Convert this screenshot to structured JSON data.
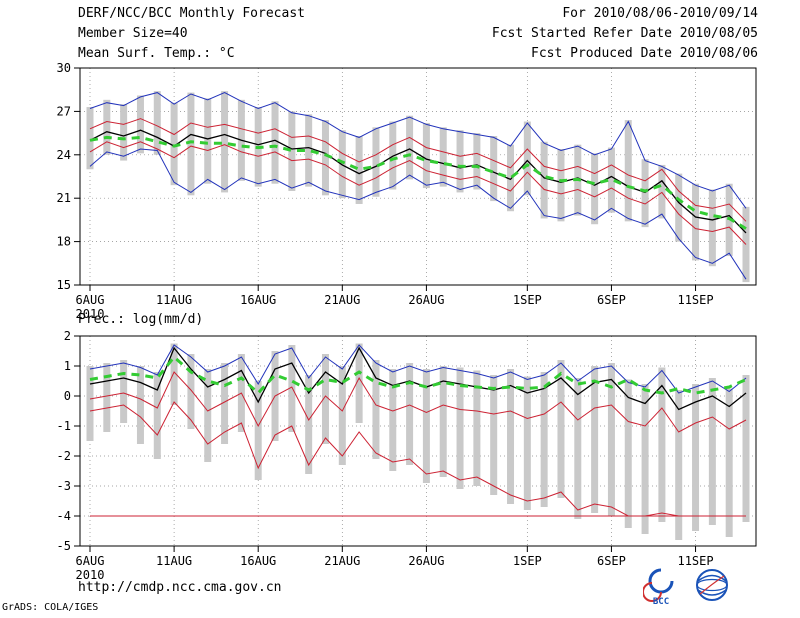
{
  "header": {
    "title": "DERF/NCC/BCC Monthly Forecast",
    "member_size": "Member Size=40",
    "for_range": "For 2010/08/06-2010/09/14",
    "refer_date": "Fcst Started Refer Date 2010/08/05",
    "produced_date": "Fcst Produced Date 2010/08/06"
  },
  "footer": {
    "url": "http://cmdp.ncc.cma.gov.cn",
    "credit": "GrADS: COLA/IGES",
    "bcc_logo_label": "BCC"
  },
  "colors": {
    "blue": "#2233bb",
    "red": "#cc2233",
    "green": "#33cc33",
    "black": "#000000",
    "bar": "#c9c9c9",
    "grid": "#888888"
  },
  "chart_data": [
    {
      "type": "line",
      "title": "Mean Surf. Temp.: °C",
      "xlabel": "",
      "ylabel": "°C",
      "ylim": [
        15,
        30
      ],
      "yticks": [
        15,
        18,
        21,
        24,
        27,
        30
      ],
      "x": [
        "6AUG",
        "7AUG",
        "8AUG",
        "9AUG",
        "10AUG",
        "11AUG",
        "12AUG",
        "13AUG",
        "14AUG",
        "15AUG",
        "16AUG",
        "17AUG",
        "18AUG",
        "19AUG",
        "20AUG",
        "21AUG",
        "22AUG",
        "23AUG",
        "24AUG",
        "25AUG",
        "26AUG",
        "27AUG",
        "28AUG",
        "29AUG",
        "30AUG",
        "31AUG",
        "1SEP",
        "2SEP",
        "3SEP",
        "4SEP",
        "5SEP",
        "6SEP",
        "7SEP",
        "8SEP",
        "9SEP",
        "10SEP",
        "11SEP",
        "12SEP",
        "13SEP",
        "14SEP"
      ],
      "xticks": [
        {
          "index": 0,
          "label": "6AUG",
          "sub": "2010"
        },
        {
          "index": 5,
          "label": "11AUG"
        },
        {
          "index": 10,
          "label": "16AUG"
        },
        {
          "index": 15,
          "label": "21AUG"
        },
        {
          "index": 20,
          "label": "26AUG"
        },
        {
          "index": 26,
          "label": "1SEP"
        },
        {
          "index": 31,
          "label": "6SEP"
        },
        {
          "index": 36,
          "label": "11SEP"
        }
      ],
      "bars": {
        "low": [
          23.0,
          24.0,
          23.6,
          24.1,
          24.0,
          21.9,
          21.2,
          22.0,
          21.4,
          22.2,
          21.8,
          22.0,
          21.5,
          21.8,
          21.2,
          21.0,
          20.6,
          21.1,
          21.6,
          22.3,
          21.7,
          21.8,
          21.4,
          21.6,
          20.8,
          20.1,
          21.2,
          19.6,
          19.4,
          19.8,
          19.2,
          20.0,
          19.4,
          19.0,
          19.6,
          18.0,
          16.7,
          16.3,
          17.0,
          15.2
        ],
        "high": [
          27.3,
          27.8,
          27.5,
          28.1,
          28.4,
          27.6,
          28.3,
          27.9,
          28.4,
          27.8,
          27.3,
          27.7,
          27.0,
          26.8,
          26.4,
          25.7,
          25.3,
          25.9,
          26.3,
          26.7,
          26.2,
          25.9,
          25.7,
          25.5,
          25.3,
          24.7,
          26.3,
          24.9,
          24.4,
          24.7,
          24.1,
          24.5,
          26.4,
          23.7,
          23.3,
          22.7,
          22.0,
          21.6,
          22.0,
          20.4
        ]
      },
      "series": [
        {
          "name": "upper-bound-blue",
          "color": "#2233bb",
          "width": 1,
          "dash": false,
          "values": [
            27.2,
            27.6,
            27.4,
            28.0,
            28.3,
            27.5,
            28.2,
            27.8,
            28.3,
            27.7,
            27.2,
            27.6,
            26.9,
            26.7,
            26.3,
            25.6,
            25.2,
            25.8,
            26.2,
            26.6,
            26.1,
            25.8,
            25.6,
            25.4,
            25.2,
            24.6,
            26.2,
            24.8,
            24.3,
            24.6,
            24.0,
            24.4,
            26.3,
            23.6,
            23.2,
            22.6,
            21.9,
            21.5,
            21.9,
            20.3
          ]
        },
        {
          "name": "lower-bound-blue",
          "color": "#2233bb",
          "width": 1,
          "dash": false,
          "values": [
            23.2,
            24.2,
            23.9,
            24.4,
            24.3,
            22.1,
            21.4,
            22.3,
            21.6,
            22.4,
            22.0,
            22.3,
            21.7,
            22.1,
            21.5,
            21.2,
            20.9,
            21.4,
            21.8,
            22.6,
            21.9,
            22.1,
            21.6,
            21.9,
            21.0,
            20.3,
            21.5,
            19.8,
            19.6,
            20.0,
            19.5,
            20.3,
            19.6,
            19.2,
            19.9,
            18.2,
            16.9,
            16.5,
            17.2,
            15.4
          ]
        },
        {
          "name": "upper-red",
          "color": "#cc2233",
          "width": 1,
          "dash": false,
          "values": [
            25.8,
            26.3,
            26.1,
            26.5,
            26.0,
            25.4,
            26.2,
            25.9,
            26.1,
            25.8,
            25.5,
            25.8,
            25.2,
            25.3,
            24.9,
            24.1,
            23.5,
            24.0,
            24.7,
            25.2,
            24.5,
            24.2,
            23.9,
            24.1,
            23.6,
            23.1,
            24.4,
            23.2,
            22.9,
            23.2,
            22.7,
            23.3,
            22.6,
            22.2,
            23.0,
            21.5,
            20.5,
            20.3,
            20.6,
            19.4
          ]
        },
        {
          "name": "lower-red",
          "color": "#cc2233",
          "width": 1,
          "dash": false,
          "values": [
            24.2,
            24.9,
            24.5,
            24.9,
            24.4,
            23.8,
            24.6,
            24.3,
            24.7,
            24.2,
            23.9,
            24.2,
            23.6,
            23.7,
            23.3,
            22.5,
            21.9,
            22.4,
            23.1,
            23.6,
            22.9,
            22.6,
            22.3,
            22.5,
            22.0,
            21.5,
            22.8,
            21.6,
            21.3,
            21.6,
            21.1,
            21.7,
            21.0,
            20.6,
            21.4,
            19.9,
            18.9,
            18.7,
            19.0,
            17.8
          ]
        },
        {
          "name": "ensemble-mean-black",
          "color": "#000000",
          "width": 1.3,
          "dash": false,
          "values": [
            25.0,
            25.6,
            25.3,
            25.7,
            25.2,
            24.6,
            25.4,
            25.1,
            25.4,
            25.0,
            24.7,
            25.0,
            24.4,
            24.5,
            24.1,
            23.3,
            22.7,
            23.2,
            23.9,
            24.4,
            23.7,
            23.4,
            23.1,
            23.3,
            22.8,
            22.3,
            23.6,
            22.4,
            22.1,
            22.4,
            21.9,
            22.5,
            21.8,
            21.4,
            22.2,
            20.7,
            19.7,
            19.5,
            19.8,
            18.6
          ]
        },
        {
          "name": "dashed-green",
          "color": "#33cc33",
          "width": 3,
          "dash": true,
          "values": [
            25.0,
            25.2,
            25.1,
            25.2,
            24.9,
            24.6,
            24.9,
            24.8,
            24.8,
            24.6,
            24.5,
            24.6,
            24.3,
            24.3,
            24.0,
            23.5,
            23.0,
            23.2,
            23.7,
            24.0,
            23.6,
            23.4,
            23.2,
            23.2,
            22.8,
            22.4,
            23.3,
            22.5,
            22.2,
            22.3,
            22.0,
            22.3,
            21.8,
            21.5,
            21.9,
            20.9,
            20.1,
            19.8,
            19.6,
            18.9
          ]
        }
      ]
    },
    {
      "type": "line",
      "title": "Prec.: log(mm/d)",
      "xlabel": "",
      "ylabel": "log(mm/d)",
      "ylim": [
        -5,
        2
      ],
      "yticks": [
        -5,
        -4,
        -3,
        -2,
        -1,
        0,
        1,
        2
      ],
      "x": [
        "6AUG",
        "7AUG",
        "8AUG",
        "9AUG",
        "10AUG",
        "11AUG",
        "12AUG",
        "13AUG",
        "14AUG",
        "15AUG",
        "16AUG",
        "17AUG",
        "18AUG",
        "19AUG",
        "20AUG",
        "21AUG",
        "22AUG",
        "23AUG",
        "24AUG",
        "25AUG",
        "26AUG",
        "27AUG",
        "28AUG",
        "29AUG",
        "30AUG",
        "31AUG",
        "1SEP",
        "2SEP",
        "3SEP",
        "4SEP",
        "5SEP",
        "6SEP",
        "7SEP",
        "8SEP",
        "9SEP",
        "10SEP",
        "11SEP",
        "12SEP",
        "13SEP",
        "14SEP"
      ],
      "xticks": [
        {
          "index": 0,
          "label": "6AUG",
          "sub": "2010"
        },
        {
          "index": 5,
          "label": "11AUG"
        },
        {
          "index": 10,
          "label": "16AUG"
        },
        {
          "index": 15,
          "label": "21AUG"
        },
        {
          "index": 20,
          "label": "26AUG"
        },
        {
          "index": 26,
          "label": "1SEP"
        },
        {
          "index": 31,
          "label": "6SEP"
        },
        {
          "index": 36,
          "label": "11SEP"
        }
      ],
      "bars": {
        "low": [
          -1.5,
          -1.2,
          -0.9,
          -1.6,
          -2.1,
          -0.3,
          -1.1,
          -2.2,
          -1.6,
          -1.2,
          -2.8,
          -1.5,
          -1.2,
          -2.6,
          -1.6,
          -2.3,
          -0.9,
          -2.1,
          -2.5,
          -2.3,
          -2.9,
          -2.7,
          -3.1,
          -3.0,
          -3.3,
          -3.6,
          -3.8,
          -3.7,
          -3.4,
          -4.1,
          -3.9,
          -4.0,
          -4.4,
          -4.6,
          -4.2,
          -4.8,
          -4.5,
          -4.3,
          -4.7,
          -4.2
        ],
        "high": [
          1.0,
          1.1,
          1.2,
          1.0,
          0.8,
          1.75,
          1.4,
          0.9,
          1.1,
          1.4,
          0.5,
          1.5,
          1.7,
          0.7,
          1.4,
          1.0,
          1.75,
          1.2,
          0.9,
          1.1,
          0.9,
          1.0,
          0.95,
          0.85,
          0.7,
          0.9,
          0.65,
          0.8,
          1.2,
          0.6,
          1.0,
          1.1,
          0.55,
          0.4,
          0.95,
          0.2,
          0.4,
          0.6,
          0.25,
          0.7
        ]
      },
      "series": [
        {
          "name": "upper-bound-blue",
          "color": "#2233bb",
          "width": 1,
          "dash": false,
          "values": [
            0.9,
            1.0,
            1.1,
            0.95,
            0.7,
            1.7,
            1.3,
            0.8,
            1.0,
            1.3,
            0.4,
            1.4,
            1.6,
            0.6,
            1.3,
            0.9,
            1.7,
            1.1,
            0.8,
            1.0,
            0.8,
            0.95,
            0.85,
            0.75,
            0.6,
            0.8,
            0.55,
            0.7,
            1.1,
            0.5,
            0.9,
            1.0,
            0.45,
            0.3,
            0.85,
            0.1,
            0.3,
            0.5,
            0.15,
            0.6
          ]
        },
        {
          "name": "upper-red",
          "color": "#cc2233",
          "width": 1,
          "dash": false,
          "values": [
            -0.1,
            0.0,
            0.1,
            -0.1,
            -0.4,
            0.8,
            0.2,
            -0.5,
            -0.2,
            0.1,
            -1.0,
            0.0,
            0.3,
            -0.8,
            0.0,
            -0.5,
            0.6,
            -0.3,
            -0.5,
            -0.3,
            -0.55,
            -0.3,
            -0.45,
            -0.5,
            -0.6,
            -0.5,
            -0.75,
            -0.6,
            -0.2,
            -0.8,
            -0.4,
            -0.3,
            -0.85,
            -1.0,
            -0.4,
            -1.2,
            -0.9,
            -0.7,
            -1.1,
            -0.8
          ]
        },
        {
          "name": "lower-red",
          "color": "#cc2233",
          "width": 1,
          "dash": false,
          "values": [
            -0.5,
            -0.4,
            -0.3,
            -0.7,
            -1.3,
            -0.2,
            -0.8,
            -1.6,
            -1.2,
            -0.9,
            -2.4,
            -1.3,
            -1.0,
            -2.3,
            -1.4,
            -2.0,
            -1.2,
            -1.9,
            -2.2,
            -2.1,
            -2.6,
            -2.5,
            -2.8,
            -2.7,
            -3.0,
            -3.3,
            -3.5,
            -3.4,
            -3.2,
            -3.8,
            -3.6,
            -3.7,
            -4.0,
            -4.0,
            -3.9,
            -4.0,
            -4.0,
            -4.0,
            -4.0,
            -4.0
          ]
        },
        {
          "name": "floor-red-minus4",
          "color": "#cc2233",
          "width": 1,
          "dash": false,
          "values": [
            -4,
            -4,
            -4,
            -4,
            -4,
            -4,
            -4,
            -4,
            -4,
            -4,
            -4,
            -4,
            -4,
            -4,
            -4,
            -4,
            -4,
            -4,
            -4,
            -4,
            -4,
            -4,
            -4,
            -4,
            -4,
            -4,
            -4,
            -4,
            -4,
            -4,
            -4,
            -4,
            -4,
            -4,
            -4,
            -4,
            -4,
            -4,
            -4,
            -4
          ]
        },
        {
          "name": "ensemble-mean-black",
          "color": "#000000",
          "width": 1.3,
          "dash": false,
          "values": [
            0.4,
            0.5,
            0.6,
            0.45,
            0.2,
            1.6,
            0.9,
            0.3,
            0.55,
            0.85,
            -0.2,
            0.9,
            1.1,
            0.1,
            0.8,
            0.4,
            1.6,
            0.6,
            0.35,
            0.5,
            0.3,
            0.5,
            0.4,
            0.3,
            0.2,
            0.35,
            0.1,
            0.25,
            0.6,
            0.05,
            0.45,
            0.55,
            -0.05,
            -0.25,
            0.35,
            -0.45,
            -0.2,
            0.0,
            -0.35,
            0.1
          ]
        },
        {
          "name": "dashed-green",
          "color": "#33cc33",
          "width": 3,
          "dash": true,
          "values": [
            0.55,
            0.65,
            0.75,
            0.7,
            0.6,
            1.3,
            0.8,
            0.5,
            0.35,
            0.6,
            0.1,
            0.7,
            0.5,
            0.2,
            0.55,
            0.45,
            0.8,
            0.45,
            0.3,
            0.45,
            0.3,
            0.45,
            0.35,
            0.3,
            0.25,
            0.3,
            0.25,
            0.3,
            0.75,
            0.4,
            0.5,
            0.3,
            0.55,
            0.2,
            0.1,
            0.25,
            0.1,
            0.2,
            0.3,
            0.55
          ]
        }
      ]
    }
  ]
}
